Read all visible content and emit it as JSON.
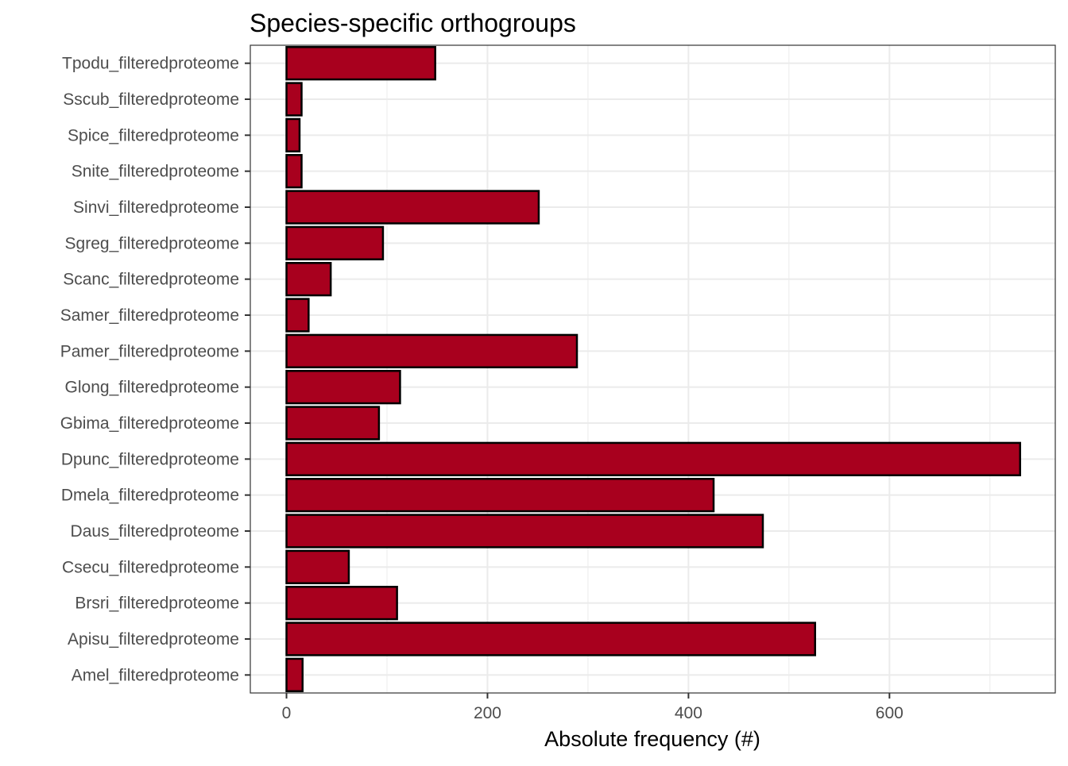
{
  "chart_data": {
    "type": "bar",
    "orientation": "horizontal",
    "title": "Species-specific orthogroups",
    "xlabel": "Absolute frequency (#)",
    "ylabel": "",
    "xlim": [
      -36,
      765
    ],
    "xticks": [
      0,
      200,
      400,
      600
    ],
    "grid": true,
    "bar_color": "#a8001e",
    "bar_edge_color": "#000000",
    "categories": [
      "Tpodu_filteredproteome",
      "Sscub_filteredproteome",
      "Spice_filteredproteome",
      "Snite_filteredproteome",
      "Sinvi_filteredproteome",
      "Sgreg_filteredproteome",
      "Scanc_filteredproteome",
      "Samer_filteredproteome",
      "Pamer_filteredproteome",
      "Glong_filteredproteome",
      "Gbima_filteredproteome",
      "Dpunc_filteredproteome",
      "Dmela_filteredproteome",
      "Daus_filteredproteome",
      "Csecu_filteredproteome",
      "Brsri_filteredproteome",
      "Apisu_filteredproteome",
      "Amel_filteredproteome"
    ],
    "values": [
      148,
      15,
      13,
      15,
      251,
      96,
      44,
      22,
      289,
      113,
      92,
      730,
      425,
      474,
      62,
      110,
      526,
      16
    ]
  }
}
